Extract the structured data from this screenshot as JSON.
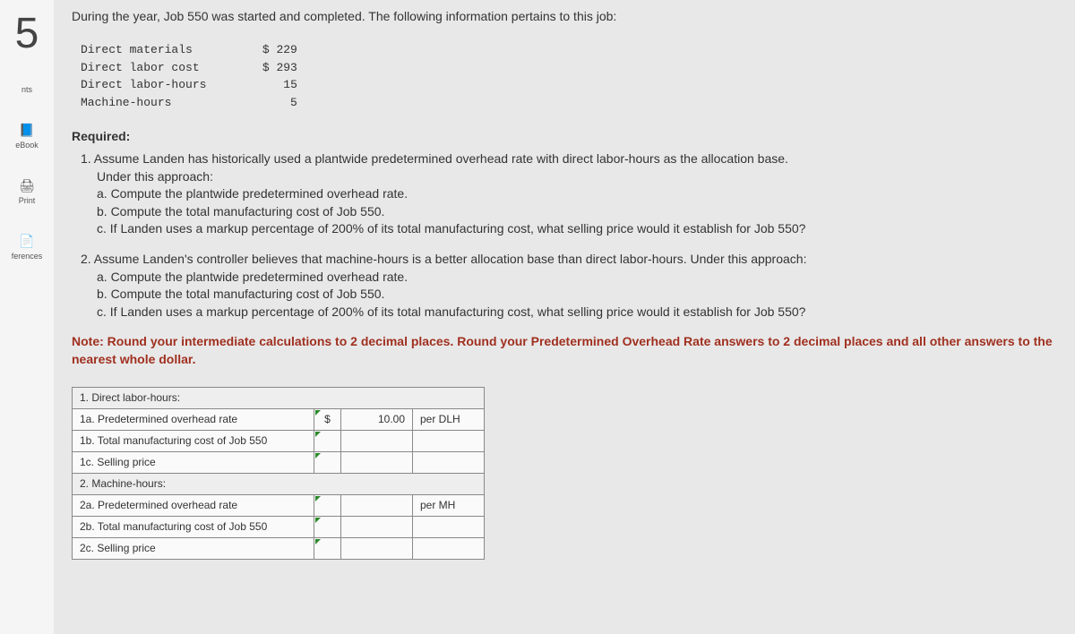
{
  "sidebar": {
    "question_number": "5",
    "items": [
      {
        "label": "nts",
        "icon": ""
      },
      {
        "label": "eBook",
        "icon": "📘"
      },
      {
        "label": "Print",
        "icon": "🖨"
      },
      {
        "label": "ferences",
        "icon": "📄"
      }
    ]
  },
  "intro": "During the year, Job 550 was started and completed. The following information pertains to this job:",
  "job_data": {
    "rows": [
      {
        "label": "Direct materials",
        "value": "$ 229"
      },
      {
        "label": "Direct labor cost",
        "value": "$ 293"
      },
      {
        "label": "Direct labor-hours",
        "value": "15"
      },
      {
        "label": "Machine-hours",
        "value": "5"
      }
    ]
  },
  "required_label": "Required:",
  "q1": {
    "lead": "1. Assume Landen has historically used a plantwide predetermined overhead rate with direct labor-hours as the allocation base.",
    "under": "Under this approach:",
    "a": "a. Compute the plantwide predetermined overhead rate.",
    "b": "b. Compute the total manufacturing cost of Job 550.",
    "c": "c. If Landen uses a markup percentage of 200% of its total manufacturing cost, what selling price would it establish for Job 550?"
  },
  "q2": {
    "lead": "2. Assume Landen's controller believes that machine-hours is a better allocation base than direct labor-hours. Under this approach:",
    "a": "a. Compute the plantwide predetermined overhead rate.",
    "b": "b. Compute the total manufacturing cost of Job 550.",
    "c": "c. If Landen uses a markup percentage of 200% of its total manufacturing cost, what selling price would it establish for Job 550?"
  },
  "note": "Note: Round your intermediate calculations to 2 decimal places. Round your Predetermined Overhead Rate answers to 2 decimal places and all other answers to the nearest whole dollar.",
  "answer_table": {
    "rows": [
      {
        "label": "1. Direct labor-hours:",
        "currency": "",
        "value": "",
        "unit": "",
        "header": true
      },
      {
        "label": "1a. Predetermined overhead rate",
        "currency": "$",
        "value": "10.00",
        "unit": "per DLH",
        "tri": true
      },
      {
        "label": "1b. Total manufacturing cost of Job 550",
        "currency": "",
        "value": "",
        "unit": "",
        "tri": true
      },
      {
        "label": "1c. Selling price",
        "currency": "",
        "value": "",
        "unit": "",
        "tri": true
      },
      {
        "label": "2. Machine-hours:",
        "currency": "",
        "value": "",
        "unit": "",
        "header": true
      },
      {
        "label": "2a. Predetermined overhead rate",
        "currency": "",
        "value": "",
        "unit": "per MH",
        "tri": true
      },
      {
        "label": "2b. Total manufacturing cost of Job 550",
        "currency": "",
        "value": "",
        "unit": "",
        "tri": true
      },
      {
        "label": "2c. Selling price",
        "currency": "",
        "value": "",
        "unit": "",
        "tri": true
      }
    ]
  }
}
